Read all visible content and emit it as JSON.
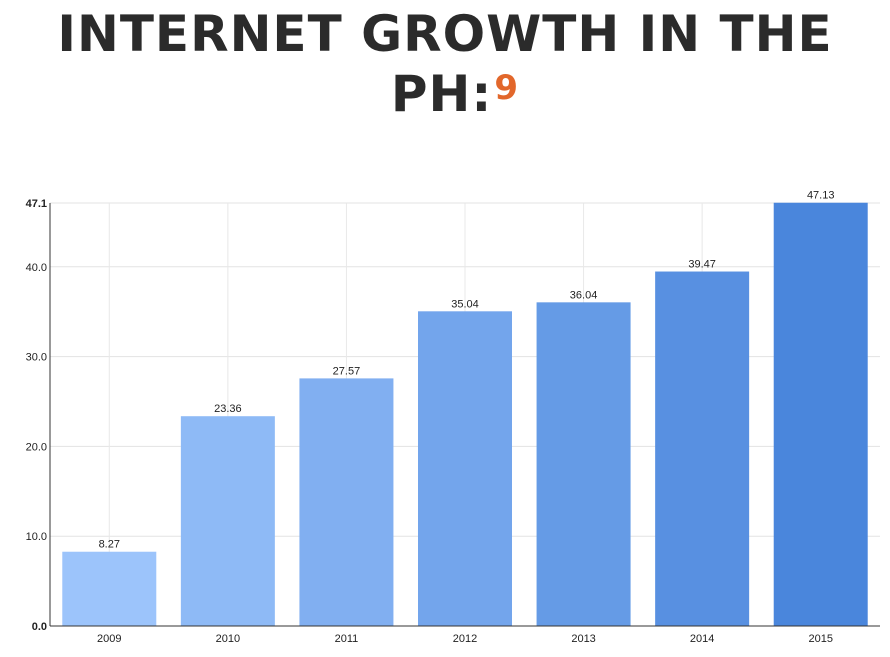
{
  "page": {
    "title_line1": "INTERNET GROWTH IN THE",
    "title_line2": "PH:",
    "footnote_marker": "9"
  },
  "colors": {
    "title": "#2b2b2b",
    "footnote": "#e2672b",
    "bar_gradient_start": "#9cc4fb",
    "bar_gradient_end": "#4a86dc"
  },
  "chart_data": {
    "type": "bar",
    "categories": [
      "2009",
      "2010",
      "2011",
      "2012",
      "2013",
      "2014",
      "2015"
    ],
    "values": [
      8.27,
      23.36,
      27.57,
      35.04,
      36.04,
      39.47,
      47.13
    ],
    "data_labels": [
      "8.27",
      "23.36",
      "27.57",
      "35.04",
      "36.04",
      "39.47",
      "47.13"
    ],
    "y_ticks": [
      0,
      10,
      20,
      30,
      40,
      47.1
    ],
    "y_tick_labels": [
      "0.0",
      "10.0",
      "20.0",
      "30.0",
      "40.0",
      "47.1"
    ],
    "ylim": [
      0,
      47.1
    ],
    "title": "",
    "xlabel": "",
    "ylabel": "",
    "grid": true,
    "legend": "none"
  }
}
